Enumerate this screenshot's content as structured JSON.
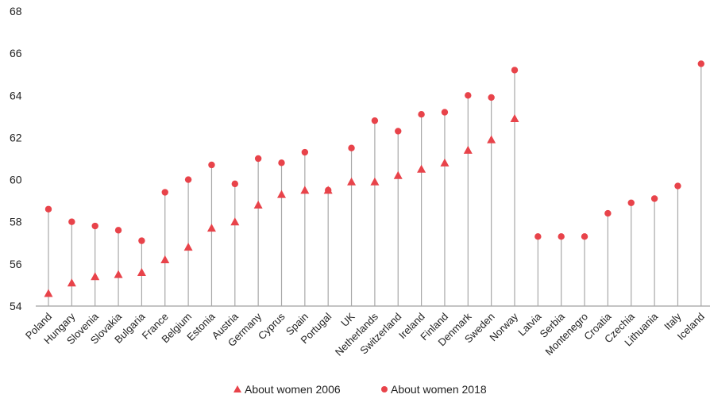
{
  "chart_data": {
    "type": "scatter",
    "title": "",
    "xlabel": "",
    "ylabel": "",
    "ylim": [
      54,
      68
    ],
    "yticks": [
      54,
      56,
      58,
      60,
      62,
      64,
      66,
      68
    ],
    "grid": false,
    "legend_position": "bottom",
    "categories": [
      "Poland",
      "Hungary",
      "Slovenia",
      "Slovakia",
      "Bulgaria",
      "France",
      "Belgium",
      "Estonia",
      "Austria",
      "Germany",
      "Cyprus",
      "Spain",
      "Portugal",
      "UK",
      "Netherlands",
      "Switzerland",
      "Ireland",
      "Finland",
      "Denmark",
      "Sweden",
      "Norway",
      "Latvia",
      "Serbia",
      "Montenegro",
      "Croatia",
      "Czechia",
      "Lithuania",
      "Italy",
      "Iceland"
    ],
    "series": [
      {
        "name": "About women 2006",
        "marker": "triangle",
        "color": "#e8434a",
        "values": [
          54.6,
          55.1,
          55.4,
          55.5,
          55.6,
          56.2,
          56.8,
          57.7,
          58.0,
          58.8,
          59.3,
          59.5,
          59.5,
          59.9,
          59.9,
          60.2,
          60.5,
          60.8,
          61.4,
          61.9,
          62.9,
          null,
          null,
          null,
          null,
          null,
          null,
          null,
          null
        ]
      },
      {
        "name": "About women 2018",
        "marker": "circle",
        "color": "#e8434a",
        "values": [
          58.6,
          58.0,
          57.8,
          57.6,
          57.1,
          59.4,
          60.0,
          60.7,
          59.8,
          61.0,
          60.8,
          61.3,
          59.5,
          61.5,
          62.8,
          62.3,
          63.1,
          63.2,
          64.0,
          63.9,
          65.2,
          57.3,
          57.3,
          57.3,
          58.4,
          58.9,
          59.1,
          59.7,
          65.5
        ]
      }
    ]
  }
}
